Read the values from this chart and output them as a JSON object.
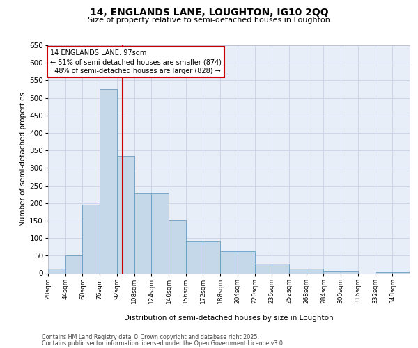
{
  "title_line1": "14, ENGLANDS LANE, LOUGHTON, IG10 2QQ",
  "title_line2": "Size of property relative to semi-detached houses in Loughton",
  "xlabel": "Distribution of semi-detached houses by size in Loughton",
  "ylabel": "Number of semi-detached properties",
  "property_size": 97,
  "property_label": "14 ENGLANDS LANE: 97sqm",
  "pct_smaller": 51,
  "pct_larger": 48,
  "n_smaller": 874,
  "n_larger": 828,
  "bar_color": "#c5d8ea",
  "bar_edge_color": "#6a9dc0",
  "vline_color": "#cc0000",
  "annotation_box_color": "#cc0000",
  "grid_color": "#ccd6e8",
  "background_color": "#e8eef8",
  "bins": [
    28,
    44,
    60,
    76,
    92,
    108,
    124,
    140,
    156,
    172,
    188,
    204,
    220,
    236,
    252,
    268,
    284,
    300,
    316,
    332,
    348
  ],
  "bin_labels": [
    "28sqm",
    "44sqm",
    "60sqm",
    "76sqm",
    "92sqm",
    "108sqm",
    "124sqm",
    "140sqm",
    "156sqm",
    "172sqm",
    "188sqm",
    "204sqm",
    "220sqm",
    "236sqm",
    "252sqm",
    "268sqm",
    "284sqm",
    "300sqm",
    "316sqm",
    "332sqm",
    "348sqm"
  ],
  "counts": [
    12,
    50,
    195,
    525,
    335,
    228,
    228,
    152,
    93,
    93,
    63,
    63,
    27,
    27,
    13,
    13,
    5,
    5,
    0,
    3,
    3
  ],
  "ylim": [
    0,
    650
  ],
  "yticks": [
    0,
    50,
    100,
    150,
    200,
    250,
    300,
    350,
    400,
    450,
    500,
    550,
    600,
    650
  ],
  "footer_line1": "Contains HM Land Registry data © Crown copyright and database right 2025.",
  "footer_line2": "Contains public sector information licensed under the Open Government Licence v3.0."
}
